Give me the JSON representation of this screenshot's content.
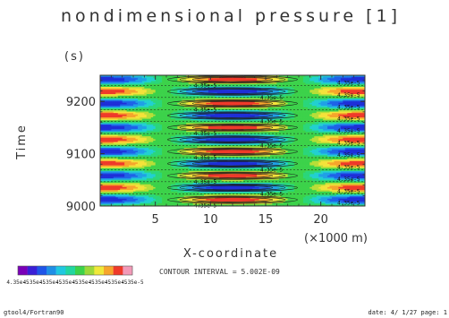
{
  "chart_data": {
    "type": "heatmap",
    "title": "nondimensional pressure [1]",
    "ylabel": "Time",
    "yunit": "(s)",
    "xlabel": "X-coordinate",
    "xunit": "(×1000 m)",
    "xlim": [
      0,
      24
    ],
    "ylim": [
      9000,
      9250
    ],
    "xticks": [
      5,
      10,
      15,
      20
    ],
    "yticks": [
      9000,
      9100,
      9200
    ],
    "xtick_labels": [
      "5",
      "10",
      "15",
      "20"
    ],
    "ytick_labels": [
      "9000",
      "9100",
      "9200"
    ],
    "pattern": {
      "x_wavelength": 24,
      "x_phase_center": 12,
      "time_period": 46,
      "time_phase": 9012,
      "amplitude": 4.35e-05
    },
    "contour_interval": "CONTOUR INTERVAL = 5.002E-09",
    "contour_label": "4.35e-5",
    "colorbar": {
      "colors": [
        "#7a00b8",
        "#3a1fd6",
        "#1f55e8",
        "#1f8fe6",
        "#20c8e0",
        "#22d6a0",
        "#3cd24a",
        "#9cd83a",
        "#f0e83a",
        "#f6a52c",
        "#ef3a2a",
        "#f29ab8"
      ],
      "labels": [
        "4.35e-5",
        "4.35e-5",
        "4.35e-5",
        "4.35e-5",
        "4.35e-5",
        "4.35e-5",
        "4.35e-5",
        "4.35e-5"
      ]
    }
  },
  "footer": {
    "left": "gtool4/Fortran90",
    "right": "date: 4/ 1/27 page: 1"
  }
}
